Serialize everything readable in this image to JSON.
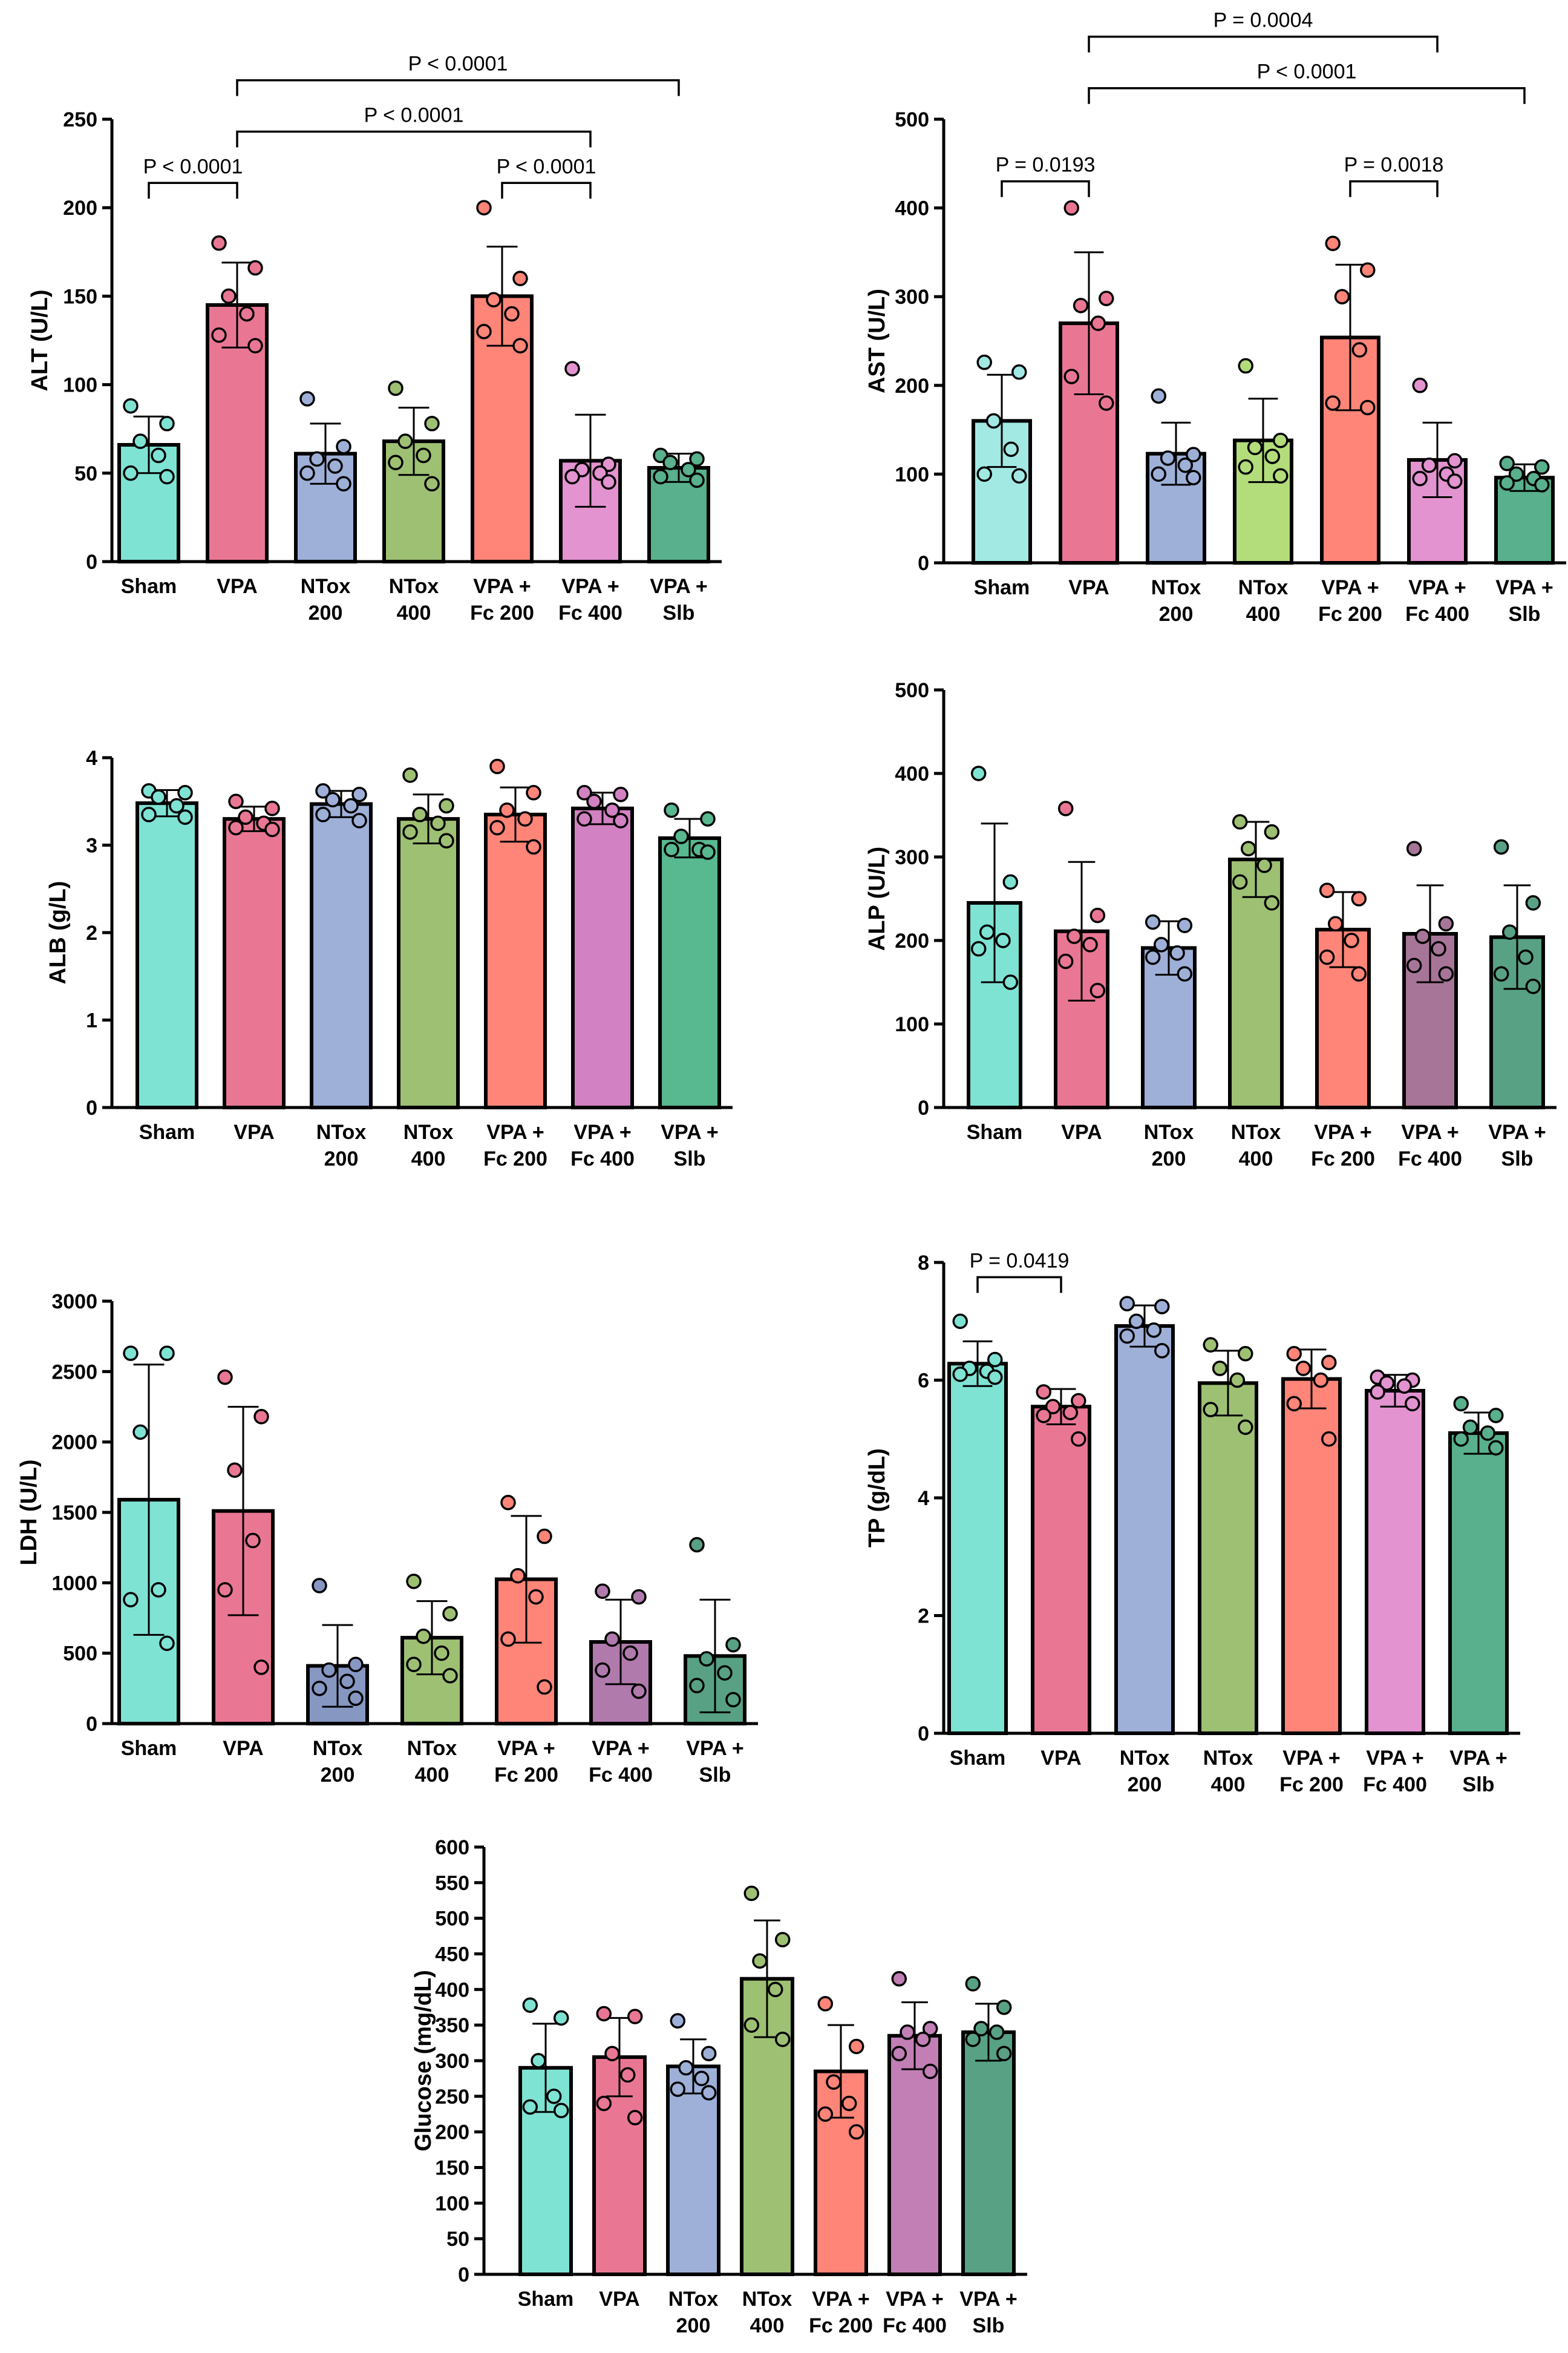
{
  "chart_data": [
    {
      "type": "bar",
      "ylabel": "ALT (U/L)",
      "ylim": [
        0,
        250
      ],
      "yticks": [
        0,
        50,
        100,
        150,
        200,
        250
      ],
      "categories": [
        [
          "Sham"
        ],
        [
          "VPA"
        ],
        [
          "NTox",
          "200"
        ],
        [
          "NTox",
          "400"
        ],
        [
          "VPA +",
          "Fc 200"
        ],
        [
          "VPA +",
          "Fc 400"
        ],
        [
          "VPA +",
          "Slb"
        ]
      ],
      "colors": [
        "#7fe3d4",
        "#e97794",
        "#9eb0d8",
        "#9ec073",
        "#fe8578",
        "#e393d0",
        "#58b08c"
      ],
      "values": [
        66,
        145,
        61,
        68,
        150,
        57,
        53
      ],
      "sd": [
        16,
        24,
        17,
        19,
        28,
        26,
        8
      ],
      "points": [
        [
          88,
          78,
          68,
          60,
          50,
          48
        ],
        [
          180,
          166,
          150,
          140,
          128,
          122
        ],
        [
          92,
          65,
          58,
          54,
          50,
          44
        ],
        [
          98,
          78,
          68,
          60,
          56,
          44
        ],
        [
          200,
          160,
          148,
          140,
          130,
          122
        ],
        [
          109,
          55,
          52,
          50,
          48,
          45
        ],
        [
          60,
          58,
          56,
          52,
          48,
          46
        ]
      ],
      "significance": [
        {
          "from": 0,
          "to": 1,
          "label": "P < 0.0001",
          "y": 214
        },
        {
          "from": 4,
          "to": 5,
          "label": "P < 0.0001",
          "y": 214
        },
        {
          "from": 1,
          "to": 5,
          "label": "P < 0.0001",
          "y": 243
        },
        {
          "from": 1,
          "to": 6,
          "label": "P < 0.0001",
          "y": 272
        }
      ]
    },
    {
      "type": "bar",
      "ylabel": "AST (U/L)",
      "ylim": [
        0,
        500
      ],
      "yticks": [
        0,
        100,
        200,
        300,
        400,
        500
      ],
      "categories": [
        [
          "Sham"
        ],
        [
          "VPA"
        ],
        [
          "NTox",
          "200"
        ],
        [
          "NTox",
          "400"
        ],
        [
          "VPA +",
          "Fc 200"
        ],
        [
          "VPA +",
          "Fc 400"
        ],
        [
          "VPA +",
          "Slb"
        ]
      ],
      "colors": [
        "#a2e9e4",
        "#e97794",
        "#9eb0d8",
        "#b3dd7b",
        "#fe8578",
        "#e393d0",
        "#58b08c"
      ],
      "values": [
        160,
        270,
        123,
        138,
        254,
        116,
        96
      ],
      "sd": [
        52,
        80,
        35,
        47,
        82,
        42,
        15
      ],
      "points": [
        [
          226,
          215,
          160,
          128,
          100,
          98
        ],
        [
          400,
          298,
          290,
          270,
          210,
          180
        ],
        [
          188,
          122,
          118,
          110,
          100,
          96
        ],
        [
          222,
          138,
          130,
          120,
          108,
          98
        ],
        [
          360,
          330,
          300,
          240,
          180,
          175
        ],
        [
          200,
          115,
          110,
          100,
          95,
          92
        ],
        [
          112,
          108,
          100,
          95,
          90,
          88
        ]
      ],
      "significance": [
        {
          "from": 0,
          "to": 1,
          "label": "P = 0.0193",
          "y": 430
        },
        {
          "from": 4,
          "to": 5,
          "label": "P = 0.0018",
          "y": 430
        },
        {
          "from": 1,
          "to": 6,
          "label": "P < 0.0001",
          "y": 535
        },
        {
          "from": 1,
          "to": 5,
          "label": "P = 0.0004",
          "y": 593
        }
      ]
    },
    {
      "type": "bar",
      "ylabel": "ALB (g/L)",
      "ylim": [
        0,
        4
      ],
      "yticks": [
        0,
        1,
        2,
        3,
        4
      ],
      "categories": [
        [
          "Sham"
        ],
        [
          "VPA"
        ],
        [
          "NTox",
          "200"
        ],
        [
          "NTox",
          "400"
        ],
        [
          "VPA +",
          "Fc 200"
        ],
        [
          "VPA +",
          "Fc 400"
        ],
        [
          "VPA +",
          "Slb"
        ]
      ],
      "colors": [
        "#7fe3d4",
        "#e97794",
        "#9eb0d8",
        "#9ec073",
        "#fe8578",
        "#d281c2",
        "#58b88f"
      ],
      "values": [
        3.48,
        3.3,
        3.47,
        3.3,
        3.35,
        3.42,
        3.08
      ],
      "sd": [
        0.15,
        0.14,
        0.15,
        0.28,
        0.31,
        0.18,
        0.22
      ],
      "points": [
        [
          3.62,
          3.6,
          3.55,
          3.45,
          3.35,
          3.32
        ],
        [
          3.5,
          3.42,
          3.32,
          3.25,
          3.2,
          3.18
        ],
        [
          3.62,
          3.58,
          3.52,
          3.45,
          3.35,
          3.28
        ],
        [
          3.8,
          3.45,
          3.35,
          3.25,
          3.15,
          3.05
        ],
        [
          3.9,
          3.6,
          3.4,
          3.3,
          3.2,
          2.98
        ],
        [
          3.6,
          3.58,
          3.5,
          3.4,
          3.3,
          3.28
        ],
        [
          3.4,
          3.3,
          3.1,
          2.95,
          2.95,
          2.92
        ]
      ],
      "significance": []
    },
    {
      "type": "bar",
      "ylabel": "ALP (U/L)",
      "ylim": [
        0,
        500
      ],
      "yticks": [
        0,
        100,
        200,
        300,
        400,
        500
      ],
      "categories": [
        [
          "Sham"
        ],
        [
          "VPA"
        ],
        [
          "NTox",
          "200"
        ],
        [
          "NTox",
          "400"
        ],
        [
          "VPA +",
          "Fc 200"
        ],
        [
          "VPA +",
          "Fc 400"
        ],
        [
          "VPA +",
          "Slb"
        ]
      ],
      "colors": [
        "#7fe3d4",
        "#e97794",
        "#9eb0d8",
        "#9ec073",
        "#fe8578",
        "#a77598",
        "#58a184"
      ],
      "values": [
        245,
        211,
        191,
        297,
        213,
        208,
        204
      ],
      "sd": [
        95,
        83,
        32,
        45,
        45,
        58,
        62
      ],
      "points": [
        [
          400,
          270,
          210,
          200,
          190,
          150
        ],
        [
          358,
          230,
          205,
          195,
          175,
          140
        ],
        [
          222,
          218,
          195,
          185,
          180,
          160
        ],
        [
          342,
          330,
          310,
          290,
          270,
          245
        ],
        [
          260,
          250,
          220,
          200,
          180,
          160
        ],
        [
          310,
          220,
          205,
          190,
          170,
          160
        ],
        [
          312,
          245,
          210,
          180,
          160,
          145
        ]
      ],
      "significance": []
    },
    {
      "type": "bar",
      "ylabel": "LDH (U/L)",
      "ylim": [
        0,
        3000
      ],
      "yticks": [
        0,
        500,
        1000,
        1500,
        2000,
        2500,
        3000
      ],
      "categories": [
        [
          "Sham"
        ],
        [
          "VPA"
        ],
        [
          "NTox",
          "200"
        ],
        [
          "NTox",
          "400"
        ],
        [
          "VPA +",
          "Fc 200"
        ],
        [
          "VPA +",
          "Fc 400"
        ],
        [
          "VPA +",
          "Slb"
        ]
      ],
      "colors": [
        "#7fe3d4",
        "#e97794",
        "#8697c2",
        "#9ec073",
        "#fe8578",
        "#b17aad",
        "#58a184"
      ],
      "values": [
        1590,
        1510,
        410,
        610,
        1025,
        580,
        480
      ],
      "sd": [
        960,
        740,
        290,
        260,
        450,
        300,
        400
      ],
      "points": [
        [
          2630,
          2630,
          2070,
          950,
          880,
          570
        ],
        [
          2460,
          2180,
          1800,
          1300,
          950,
          400
        ],
        [
          980,
          420,
          380,
          300,
          250,
          180
        ],
        [
          1010,
          780,
          620,
          500,
          420,
          340
        ],
        [
          1570,
          1330,
          1050,
          900,
          600,
          260
        ],
        [
          940,
          900,
          600,
          500,
          380,
          230
        ],
        [
          1270,
          560,
          460,
          360,
          270,
          170
        ]
      ],
      "significance": []
    },
    {
      "type": "bar",
      "ylabel": "TP (g/dL)",
      "ylim": [
        0,
        8
      ],
      "yticks": [
        0,
        2,
        4,
        6,
        8
      ],
      "categories": [
        [
          "Sham"
        ],
        [
          "VPA"
        ],
        [
          "NTox",
          "200"
        ],
        [
          "NTox",
          "400"
        ],
        [
          "VPA +",
          "Fc 200"
        ],
        [
          "VPA +",
          "Fc 400"
        ],
        [
          "VPA +",
          "Slb"
        ]
      ],
      "colors": [
        "#7fe3d4",
        "#e97794",
        "#9eb0d8",
        "#9ec073",
        "#fe8578",
        "#e393d0",
        "#58b08c"
      ],
      "values": [
        6.28,
        5.55,
        6.92,
        5.95,
        6.02,
        5.82,
        5.1
      ],
      "sd": [
        0.38,
        0.3,
        0.35,
        0.55,
        0.5,
        0.27,
        0.35
      ],
      "points": [
        [
          7.0,
          6.35,
          6.2,
          6.15,
          6.1,
          6.05
        ],
        [
          5.8,
          5.65,
          5.55,
          5.45,
          5.4,
          5.0
        ],
        [
          7.3,
          7.25,
          7.0,
          6.85,
          6.75,
          6.5
        ],
        [
          6.6,
          6.45,
          6.2,
          6.0,
          5.5,
          5.2
        ],
        [
          6.45,
          6.3,
          6.2,
          6.0,
          5.6,
          5.0
        ],
        [
          6.05,
          6.0,
          5.95,
          5.9,
          5.8,
          5.6
        ],
        [
          5.6,
          5.4,
          5.2,
          5.1,
          5.0,
          4.85
        ]
      ],
      "significance": [
        {
          "from": 0,
          "to": 1,
          "label": "P = 0.0419",
          "y": 7.75
        }
      ]
    },
    {
      "type": "bar",
      "ylabel": "Glucose (mg/dL)",
      "ylim": [
        0,
        600
      ],
      "yticks": [
        0,
        50,
        100,
        150,
        200,
        250,
        300,
        350,
        400,
        450,
        500,
        550,
        600
      ],
      "categories": [
        [
          "Sham"
        ],
        [
          "VPA"
        ],
        [
          "NTox",
          "200"
        ],
        [
          "NTox",
          "400"
        ],
        [
          "VPA +",
          "Fc 200"
        ],
        [
          "VPA +",
          "Fc 400"
        ],
        [
          "VPA +",
          "Slb"
        ]
      ],
      "colors": [
        "#7fe3d4",
        "#e97794",
        "#9eb0d8",
        "#9ec073",
        "#fe8578",
        "#c27fb6",
        "#58a184"
      ],
      "values": [
        290,
        305,
        292,
        415,
        285,
        335,
        340
      ],
      "sd": [
        62,
        55,
        38,
        82,
        65,
        47,
        40
      ],
      "points": [
        [
          378,
          360,
          300,
          250,
          235,
          230
        ],
        [
          366,
          362,
          310,
          280,
          240,
          220
        ],
        [
          356,
          310,
          290,
          275,
          260,
          255
        ],
        [
          535,
          470,
          440,
          400,
          350,
          330
        ],
        [
          380,
          320,
          270,
          240,
          225,
          200
        ],
        [
          415,
          345,
          340,
          330,
          310,
          285
        ],
        [
          408,
          375,
          345,
          340,
          330,
          310
        ]
      ],
      "significance": []
    }
  ]
}
